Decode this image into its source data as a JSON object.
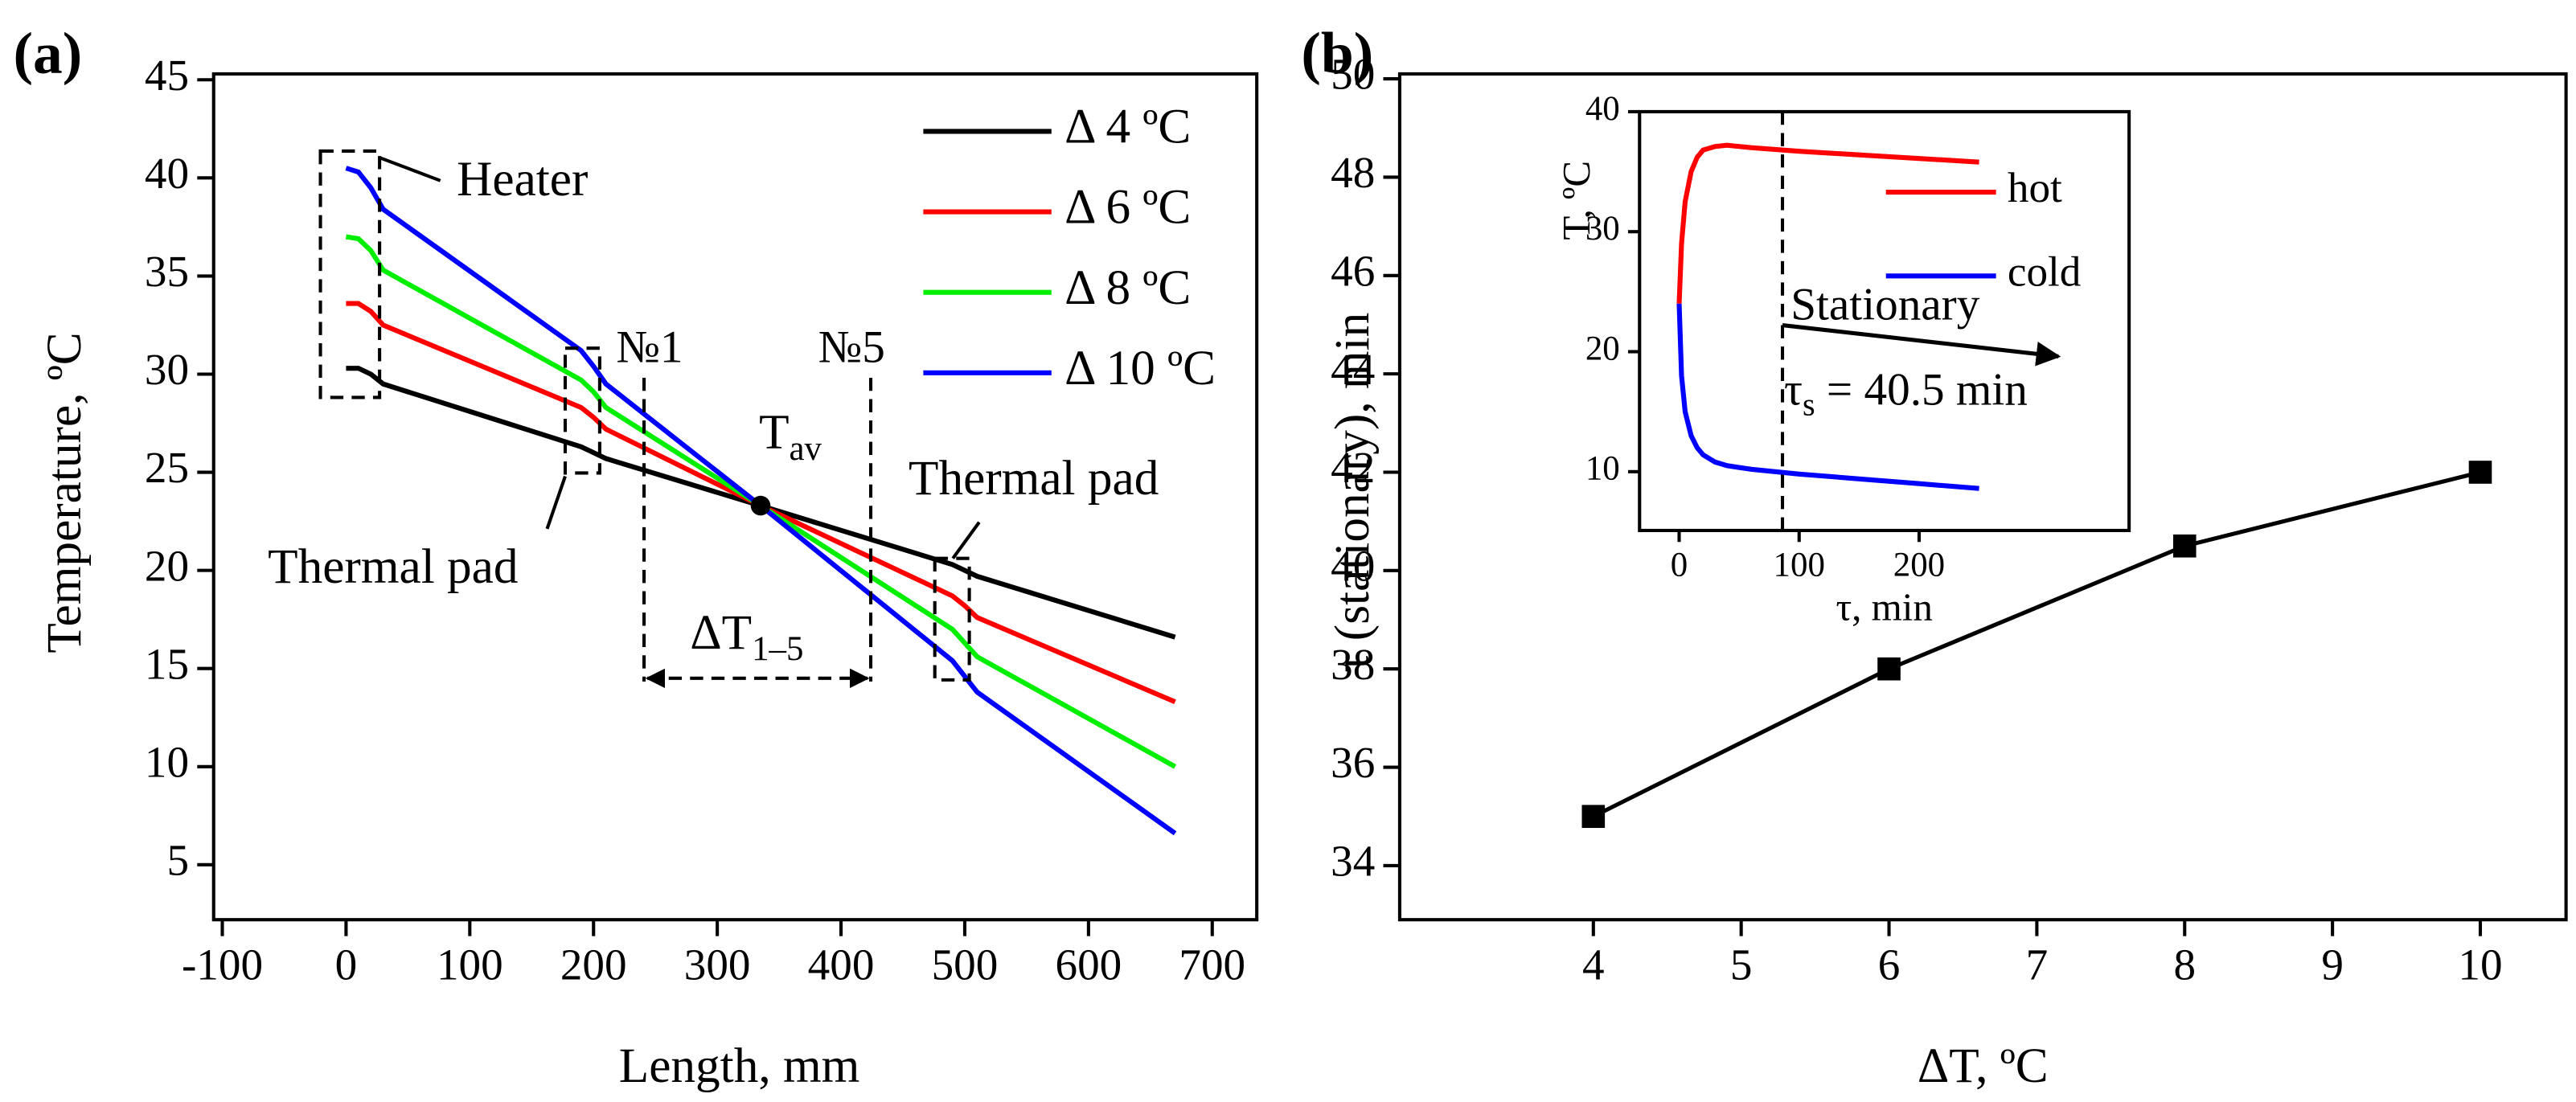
{
  "chart_data": [
    {
      "type": "line",
      "panel": "(a)",
      "x_label": "Length, mm",
      "y_label": "Temperature, ºC",
      "x": [
        0,
        10,
        20,
        30,
        190,
        200,
        210,
        335,
        490,
        500,
        510,
        670
      ],
      "series": [
        {
          "name": "Δ 4 ºC",
          "color": "#000000",
          "values": [
            30.3,
            30.3,
            30.0,
            29.5,
            26.3,
            26.0,
            25.7,
            23.3,
            20.3,
            20.0,
            19.7,
            16.6
          ]
        },
        {
          "name": "Δ 6 ºC",
          "color": "#ff0000",
          "values": [
            33.6,
            33.6,
            33.2,
            32.5,
            28.3,
            27.8,
            27.2,
            23.3,
            18.7,
            18.2,
            17.6,
            13.3
          ]
        },
        {
          "name": "Δ 8 ºC",
          "color": "#00ee00",
          "values": [
            37.0,
            36.9,
            36.3,
            35.3,
            29.7,
            29.1,
            28.3,
            23.3,
            17.0,
            16.3,
            15.6,
            10.0
          ]
        },
        {
          "name": "Δ 10 ºC",
          "color": "#0000ff",
          "values": [
            40.5,
            40.3,
            39.5,
            38.4,
            31.2,
            30.4,
            29.5,
            23.3,
            15.4,
            14.6,
            13.8,
            6.6
          ]
        }
      ],
      "xlim": [
        -107,
        736
      ],
      "ylim": [
        2.2,
        45.3
      ],
      "xticks": [
        -100,
        0,
        100,
        200,
        300,
        400,
        500,
        600,
        700
      ],
      "yticks": [
        5,
        10,
        15,
        20,
        25,
        30,
        35,
        40,
        45
      ],
      "legend": "upper right",
      "annotations": [
        "Heater",
        "№1",
        "№5",
        "Thermal pad",
        "Thermal pad"
      ],
      "tav": {
        "main": "T",
        "sub": "av"
      },
      "tav_point": {
        "x": 335,
        "y": 23.3
      },
      "delta_t": {
        "main": "ΔT",
        "sub": "1–5"
      }
    },
    {
      "type": "line",
      "panel": "(b)",
      "x_label": "ΔT, ºC",
      "y_label": "τ (stationary), min",
      "x": [
        4,
        6,
        8,
        10
      ],
      "series": [
        {
          "color": "#000000",
          "values": [
            35,
            38,
            40.5,
            42
          ]
        }
      ],
      "marker": "square",
      "xlim": [
        2.69,
        10.58
      ],
      "ylim": [
        32.9,
        50.1
      ],
      "xticks": [
        4,
        5,
        6,
        7,
        8,
        9,
        10
      ],
      "yticks": [
        34,
        36,
        38,
        40,
        42,
        44,
        46,
        48,
        50
      ]
    },
    {
      "type": "line",
      "x_label": "τ, min",
      "y_label": "T, ºC",
      "x": [
        0,
        2,
        5,
        10,
        15,
        20,
        30,
        40,
        60,
        100,
        150,
        200,
        250
      ],
      "series": [
        {
          "name": "hot",
          "color": "#ff0000",
          "values": [
            24,
            29,
            32.5,
            35,
            36.2,
            36.8,
            37.1,
            37.2,
            37.0,
            36.7,
            36.4,
            36.1,
            35.8
          ]
        },
        {
          "name": "cold",
          "color": "#0000ff",
          "values": [
            24,
            18,
            15,
            13,
            12,
            11.4,
            10.8,
            10.5,
            10.2,
            9.8,
            9.4,
            9.0,
            8.6
          ]
        }
      ],
      "xlim": [
        -33,
        375
      ],
      "ylim": [
        5.1,
        40
      ],
      "xticks": [
        0,
        100,
        200
      ],
      "yticks": [
        10,
        20,
        30,
        40
      ],
      "legend": "upper right",
      "annotation": "Stationary",
      "tau_s": {
        "main": "τ",
        "sub": "s",
        "rest": " = 40.5 min"
      }
    }
  ]
}
